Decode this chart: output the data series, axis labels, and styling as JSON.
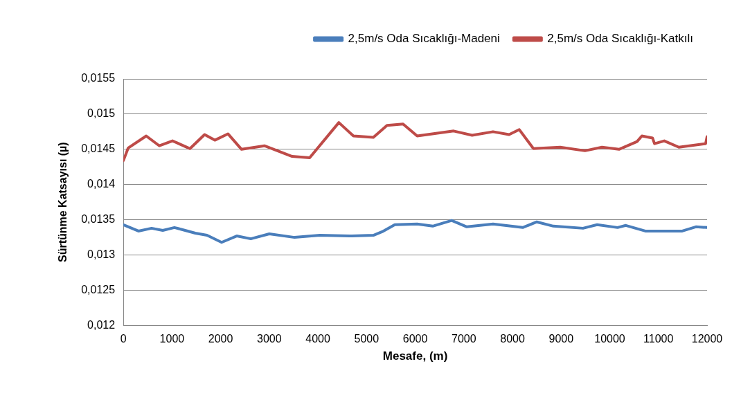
{
  "chart_data": {
    "type": "line",
    "xlabel": "Mesafe, (m)",
    "ylabel": "Sürtünme Katsayısı (µ)",
    "xlim": [
      0,
      12000
    ],
    "xticks": [
      0,
      1000,
      2000,
      3000,
      4000,
      5000,
      6000,
      7000,
      8000,
      9000,
      10000,
      11000,
      12000
    ],
    "ylim": [
      0.012,
      0.0155
    ],
    "yticks": [
      {
        "value": 0.012,
        "label": "0,012"
      },
      {
        "value": 0.0125,
        "label": "0,0125"
      },
      {
        "value": 0.013,
        "label": "0,013"
      },
      {
        "value": 0.0135,
        "label": "0,0135"
      },
      {
        "value": 0.014,
        "label": "0,014"
      },
      {
        "value": 0.0145,
        "label": "0,0145"
      },
      {
        "value": 0.015,
        "label": "0,015"
      },
      {
        "value": 0.0155,
        "label": "0,0155"
      }
    ],
    "grid": "y",
    "legend": "top right",
    "marker": "none",
    "line_style": "solid",
    "series": [
      {
        "name": "2,5m/s Oda Sıcaklığı-Madeni",
        "color": "#4a7ebb",
        "x": [
          0,
          310,
          580,
          810,
          1050,
          1480,
          1720,
          2020,
          2330,
          2620,
          3000,
          3520,
          4040,
          4650,
          5140,
          5320,
          5580,
          6040,
          6360,
          6750,
          7060,
          7600,
          8210,
          8500,
          8840,
          9450,
          9740,
          10160,
          10330,
          10730,
          11490,
          11770,
          12000
        ],
        "values": [
          0.01343,
          0.01334,
          0.01338,
          0.01335,
          0.01339,
          0.01331,
          0.01328,
          0.01318,
          0.01327,
          0.01323,
          0.0133,
          0.01325,
          0.01328,
          0.01327,
          0.01328,
          0.01333,
          0.01343,
          0.01344,
          0.01341,
          0.01349,
          0.0134,
          0.01344,
          0.01339,
          0.01347,
          0.01341,
          0.01338,
          0.01343,
          0.01339,
          0.01342,
          0.01334,
          0.01334,
          0.0134,
          0.01339
        ]
      },
      {
        "name": "2,5m/s Oda Sıcaklığı-Katkılı",
        "color": "#be4b48",
        "x": [
          0,
          100,
          470,
          740,
          1010,
          1370,
          1670,
          1880,
          2150,
          2430,
          2900,
          3470,
          3830,
          4430,
          4730,
          5140,
          5420,
          5750,
          6040,
          6790,
          7170,
          7600,
          7930,
          8140,
          8430,
          8980,
          9490,
          9840,
          10190,
          10560,
          10660,
          10880,
          10920,
          11120,
          11420,
          11970,
          12000
        ],
        "values": [
          0.01434,
          0.01452,
          0.01469,
          0.01455,
          0.01462,
          0.01451,
          0.01471,
          0.01463,
          0.01472,
          0.0145,
          0.01455,
          0.0144,
          0.01438,
          0.01488,
          0.01469,
          0.01467,
          0.01484,
          0.01486,
          0.01469,
          0.01476,
          0.0147,
          0.01475,
          0.01471,
          0.01478,
          0.01451,
          0.01453,
          0.01448,
          0.01453,
          0.0145,
          0.01461,
          0.01469,
          0.01466,
          0.01458,
          0.01462,
          0.01453,
          0.01458,
          0.01468
        ]
      }
    ]
  }
}
